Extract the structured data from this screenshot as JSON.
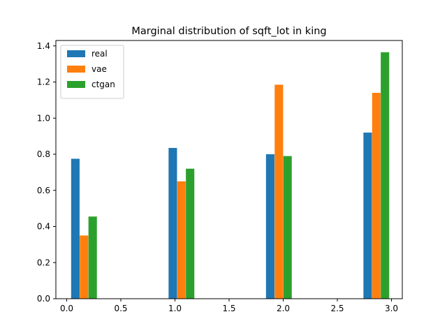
{
  "chart_data": {
    "type": "bar",
    "title": "Marginal distribution of sqft_lot in king",
    "xlabel": "",
    "ylabel": "",
    "xlim": [
      -0.1,
      3.1
    ],
    "ylim": [
      0,
      1.43
    ],
    "xticks": [
      0.0,
      0.5,
      1.0,
      1.5,
      2.0,
      2.5,
      3.0
    ],
    "xtick_labels": [
      "0.0",
      "0.5",
      "1.0",
      "1.5",
      "2.0",
      "2.5",
      "3.0"
    ],
    "yticks": [
      0.0,
      0.2,
      0.4,
      0.6,
      0.8,
      1.0,
      1.2,
      1.4
    ],
    "ytick_labels": [
      "0.0",
      "0.2",
      "0.4",
      "0.6",
      "0.8",
      "1.0",
      "1.2",
      "1.4"
    ],
    "grid": false,
    "legend_position": "top-left",
    "series": [
      {
        "name": "real",
        "color": "#1f77b4",
        "x": [
          0.08,
          0.98,
          1.88,
          2.78
        ],
        "width": 0.078,
        "values": [
          0.775,
          0.835,
          0.8,
          0.92
        ]
      },
      {
        "name": "vae",
        "color": "#ff7f0e",
        "x": [
          0.16,
          1.06,
          1.96,
          2.86
        ],
        "width": 0.078,
        "values": [
          0.35,
          0.65,
          1.185,
          1.14
        ]
      },
      {
        "name": "ctgan",
        "color": "#2ca02c",
        "x": [
          0.24,
          1.14,
          2.04,
          2.94
        ],
        "width": 0.078,
        "values": [
          0.455,
          0.72,
          0.79,
          1.365
        ]
      }
    ]
  }
}
